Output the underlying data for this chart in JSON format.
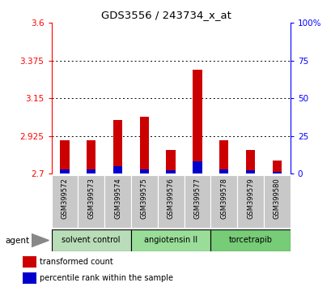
{
  "title": "GDS3556 / 243734_x_at",
  "samples": [
    "GSM399572",
    "GSM399573",
    "GSM399574",
    "GSM399575",
    "GSM399576",
    "GSM399577",
    "GSM399578",
    "GSM399579",
    "GSM399580"
  ],
  "transformed_counts": [
    2.9,
    2.9,
    3.02,
    3.04,
    2.84,
    3.32,
    2.9,
    2.84,
    2.78
  ],
  "percentile_ranks": [
    3,
    3,
    5,
    3,
    2,
    8,
    3,
    2,
    1
  ],
  "y_min": 2.7,
  "y_max": 3.6,
  "y_ticks": [
    2.7,
    2.925,
    3.15,
    3.375,
    3.6
  ],
  "y_tick_labels": [
    "2.7",
    "2.925",
    "3.15",
    "3.375",
    "3.6"
  ],
  "right_y_ticks": [
    0,
    25,
    50,
    75,
    100
  ],
  "right_y_tick_labels": [
    "0",
    "25",
    "50",
    "75",
    "100%"
  ],
  "bar_color_red": "#cc0000",
  "bar_color_blue": "#0000cc",
  "groups": [
    {
      "label": "solvent control",
      "samples": [
        0,
        1,
        2
      ]
    },
    {
      "label": "angiotensin II",
      "samples": [
        3,
        4,
        5
      ]
    },
    {
      "label": "torcetrapib",
      "samples": [
        6,
        7,
        8
      ]
    }
  ],
  "group_colors": [
    "#b8ddb8",
    "#99dd99",
    "#77cc77"
  ],
  "agent_label": "agent",
  "legend_red": "transformed count",
  "legend_blue": "percentile rank within the sample",
  "bar_width": 0.35
}
